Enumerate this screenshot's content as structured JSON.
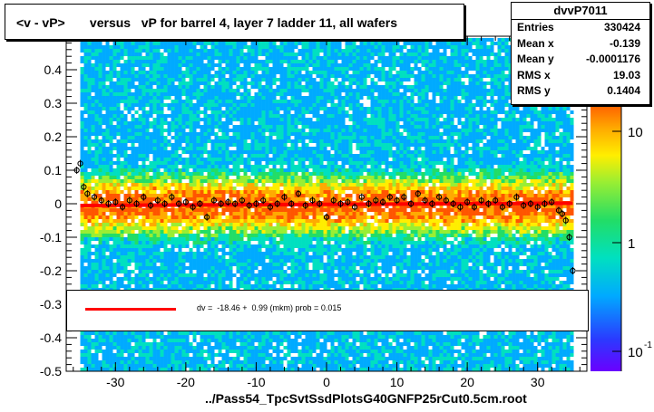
{
  "title": "<v - vP>       versus   vP for barrel 4, layer 7 ladder 11, all wafers",
  "stats": {
    "name": "dvvP7011",
    "rows": [
      {
        "label": "Entries",
        "value": "330424"
      },
      {
        "label": "Mean x",
        "value": "-0.139"
      },
      {
        "label": "Mean y",
        "value": "-0.0001176"
      },
      {
        "label": "RMS x",
        "value": "19.03"
      },
      {
        "label": "RMS y",
        "value": "0.1404"
      }
    ]
  },
  "fit_legend": "dv =  -18.46 +  0.99 (mkm) prob = 0.015",
  "footer": "../Pass54_TpcSvtSsdPlotsG40GNFP25rCut0.5cm.root",
  "colors": {
    "fit_line": "#ff0000",
    "frame": "#000000"
  },
  "chart_data": {
    "type": "heatmap",
    "xlim": [
      -37,
      37
    ],
    "ylim": [
      -0.5,
      0.5
    ],
    "x_ticks": [
      -30,
      -20,
      -10,
      0,
      10,
      20,
      30
    ],
    "y_ticks": [
      -0.5,
      -0.4,
      -0.3,
      -0.2,
      -0.1,
      0,
      0.1,
      0.2,
      0.3,
      0.4
    ],
    "z_scale": "log",
    "z_ticks": [
      "10",
      "1",
      "10"
    ],
    "z_tick_exponents": [
      "",
      "",
      "-1"
    ],
    "fit": {
      "intercept_mkm": -18.46,
      "slope": 0.99
    },
    "profile_points": [
      {
        "x": -35.5,
        "y": 0.1
      },
      {
        "x": -35,
        "y": 0.12
      },
      {
        "x": -34.5,
        "y": 0.05
      },
      {
        "x": -34,
        "y": 0.03
      },
      {
        "x": -33,
        "y": 0.02
      },
      {
        "x": -32,
        "y": 0.01
      },
      {
        "x": -31,
        "y": 0.0
      },
      {
        "x": -30,
        "y": 0.005
      },
      {
        "x": -29,
        "y": -0.01
      },
      {
        "x": -28,
        "y": 0.01
      },
      {
        "x": -27,
        "y": 0.0
      },
      {
        "x": -26,
        "y": 0.02
      },
      {
        "x": -25,
        "y": -0.005
      },
      {
        "x": -24,
        "y": 0.01
      },
      {
        "x": -23,
        "y": 0.0
      },
      {
        "x": -22,
        "y": 0.02
      },
      {
        "x": -21,
        "y": 0.0
      },
      {
        "x": -20,
        "y": 0.005
      },
      {
        "x": -19,
        "y": -0.01
      },
      {
        "x": -18,
        "y": 0.0
      },
      {
        "x": -17,
        "y": -0.04
      },
      {
        "x": -16,
        "y": 0.01
      },
      {
        "x": -15,
        "y": 0.0
      },
      {
        "x": -14,
        "y": 0.005
      },
      {
        "x": -13,
        "y": 0.0
      },
      {
        "x": -12,
        "y": 0.01
      },
      {
        "x": -11,
        "y": -0.005
      },
      {
        "x": -10,
        "y": 0.0
      },
      {
        "x": -9,
        "y": 0.01
      },
      {
        "x": -8,
        "y": -0.01
      },
      {
        "x": -7,
        "y": 0.0
      },
      {
        "x": -6,
        "y": 0.02
      },
      {
        "x": -5,
        "y": 0.0
      },
      {
        "x": -4,
        "y": 0.03
      },
      {
        "x": -3,
        "y": -0.005
      },
      {
        "x": -2,
        "y": 0.01
      },
      {
        "x": -1,
        "y": 0.0
      },
      {
        "x": 0,
        "y": -0.04
      },
      {
        "x": 1,
        "y": 0.01
      },
      {
        "x": 2,
        "y": 0.0
      },
      {
        "x": 3,
        "y": 0.005
      },
      {
        "x": 4,
        "y": -0.01
      },
      {
        "x": 5,
        "y": 0.02
      },
      {
        "x": 6,
        "y": 0.0
      },
      {
        "x": 7,
        "y": 0.01
      },
      {
        "x": 8,
        "y": 0.005
      },
      {
        "x": 9,
        "y": 0.02
      },
      {
        "x": 10,
        "y": 0.01
      },
      {
        "x": 11,
        "y": 0.02
      },
      {
        "x": 12,
        "y": 0.0
      },
      {
        "x": 13,
        "y": 0.03
      },
      {
        "x": 14,
        "y": 0.01
      },
      {
        "x": 15,
        "y": 0.0
      },
      {
        "x": 16,
        "y": 0.02
      },
      {
        "x": 17,
        "y": 0.01
      },
      {
        "x": 18,
        "y": 0.0
      },
      {
        "x": 19,
        "y": -0.01
      },
      {
        "x": 20,
        "y": 0.005
      },
      {
        "x": 21,
        "y": -0.01
      },
      {
        "x": 22,
        "y": 0.01
      },
      {
        "x": 23,
        "y": 0.0
      },
      {
        "x": 24,
        "y": 0.01
      },
      {
        "x": 25,
        "y": -0.01
      },
      {
        "x": 26,
        "y": 0.0
      },
      {
        "x": 27,
        "y": 0.02
      },
      {
        "x": 28,
        "y": -0.005
      },
      {
        "x": 29,
        "y": 0.0
      },
      {
        "x": 30,
        "y": -0.01
      },
      {
        "x": 31,
        "y": 0.0
      },
      {
        "x": 32,
        "y": 0.005
      },
      {
        "x": 33,
        "y": -0.02
      },
      {
        "x": 33.5,
        "y": -0.03
      },
      {
        "x": 34,
        "y": -0.05
      },
      {
        "x": 34.5,
        "y": -0.1
      },
      {
        "x": 35,
        "y": -0.2
      }
    ]
  }
}
